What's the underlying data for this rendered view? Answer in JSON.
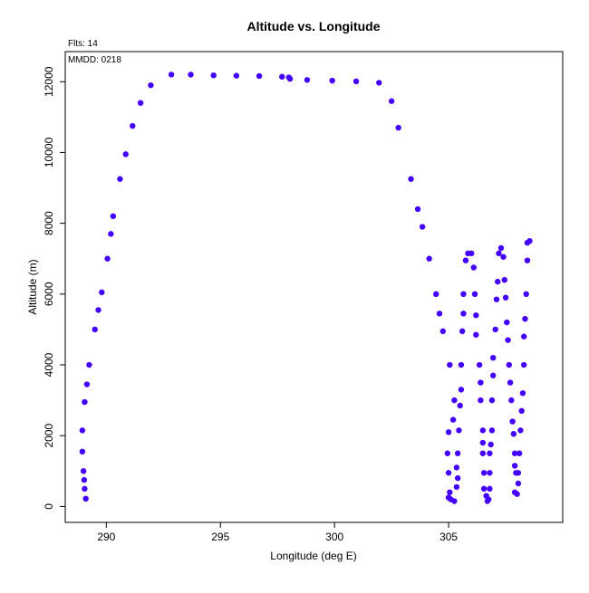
{
  "chart_data": {
    "type": "scatter",
    "title": "Altitude vs. Longitude",
    "xlabel": "Longitude (deg E)",
    "ylabel": "Altitude (m)",
    "annotations": [
      "Flts: 14",
      "MMDD: 0218"
    ],
    "xlim": [
      288.2,
      310.0
    ],
    "ylim": [
      -450,
      12850
    ],
    "x_ticks": [
      290,
      295,
      300,
      305
    ],
    "y_ticks": [
      0,
      2000,
      4000,
      6000,
      8000,
      10000,
      12000
    ],
    "grid": false,
    "legend": "none",
    "marker_color": "#4400ff",
    "series": [
      {
        "points": [
          [
            289.1,
            220
          ],
          [
            289.05,
            500
          ],
          [
            289.03,
            750
          ],
          [
            289.0,
            1000
          ],
          [
            288.95,
            1550
          ],
          [
            288.95,
            2150
          ],
          [
            289.05,
            2950
          ],
          [
            289.15,
            3450
          ],
          [
            289.25,
            4000
          ],
          [
            289.5,
            5000
          ],
          [
            289.65,
            5550
          ],
          [
            289.8,
            6050
          ],
          [
            290.05,
            7000
          ],
          [
            290.2,
            7700
          ],
          [
            290.3,
            8200
          ],
          [
            290.6,
            9250
          ],
          [
            290.85,
            9950
          ],
          [
            291.15,
            10750
          ],
          [
            291.5,
            11400
          ],
          [
            291.95,
            11900
          ],
          [
            292.85,
            12200
          ],
          [
            293.7,
            12200
          ],
          [
            294.7,
            12180
          ],
          [
            295.7,
            12170
          ],
          [
            296.7,
            12160
          ],
          [
            297.7,
            12140
          ],
          [
            298.0,
            12120
          ],
          [
            298.05,
            12080
          ],
          [
            298.8,
            12050
          ],
          [
            299.9,
            12030
          ],
          [
            300.95,
            12010
          ],
          [
            301.95,
            11970
          ],
          [
            302.5,
            11450
          ],
          [
            302.8,
            10700
          ],
          [
            303.35,
            9250
          ],
          [
            303.65,
            8400
          ],
          [
            303.85,
            7900
          ],
          [
            304.15,
            7000
          ],
          [
            304.45,
            6000
          ],
          [
            304.6,
            5450
          ],
          [
            304.75,
            4950
          ],
          [
            304.95,
            1500
          ],
          [
            305.0,
            950
          ],
          [
            305.05,
            4000
          ],
          [
            305.0,
            2100
          ],
          [
            305.05,
            400
          ],
          [
            305.0,
            250
          ],
          [
            305.1,
            200
          ],
          [
            305.2,
            2450
          ],
          [
            305.25,
            3000
          ],
          [
            305.25,
            150
          ],
          [
            305.35,
            550
          ],
          [
            305.4,
            800
          ],
          [
            305.35,
            1100
          ],
          [
            305.4,
            1500
          ],
          [
            305.45,
            2150
          ],
          [
            305.5,
            2850
          ],
          [
            305.55,
            3300
          ],
          [
            305.55,
            4000
          ],
          [
            305.6,
            4950
          ],
          [
            305.65,
            5450
          ],
          [
            305.65,
            6000
          ],
          [
            305.75,
            6950
          ],
          [
            305.85,
            7150
          ],
          [
            306.0,
            7150
          ],
          [
            306.1,
            6750
          ],
          [
            306.15,
            6000
          ],
          [
            306.2,
            5400
          ],
          [
            306.2,
            4850
          ],
          [
            306.35,
            4000
          ],
          [
            306.4,
            3500
          ],
          [
            306.4,
            3000
          ],
          [
            306.5,
            2150
          ],
          [
            306.5,
            1800
          ],
          [
            306.5,
            1500
          ],
          [
            306.55,
            950
          ],
          [
            306.55,
            500
          ],
          [
            306.65,
            300
          ],
          [
            306.75,
            200
          ],
          [
            306.7,
            150
          ],
          [
            306.8,
            500
          ],
          [
            306.8,
            950
          ],
          [
            306.8,
            1500
          ],
          [
            306.85,
            1750
          ],
          [
            306.9,
            2150
          ],
          [
            306.9,
            3000
          ],
          [
            306.95,
            3700
          ],
          [
            306.95,
            4200
          ],
          [
            307.05,
            5000
          ],
          [
            307.1,
            5850
          ],
          [
            307.15,
            6350
          ],
          [
            307.2,
            7150
          ],
          [
            307.3,
            7300
          ],
          [
            307.4,
            7050
          ],
          [
            307.45,
            6400
          ],
          [
            307.5,
            5900
          ],
          [
            307.55,
            5200
          ],
          [
            307.6,
            4700
          ],
          [
            307.65,
            4000
          ],
          [
            307.7,
            3500
          ],
          [
            307.75,
            3000
          ],
          [
            307.8,
            2400
          ],
          [
            307.85,
            2050
          ],
          [
            307.9,
            1500
          ],
          [
            307.9,
            1150
          ],
          [
            307.95,
            950
          ],
          [
            307.9,
            400
          ],
          [
            308.0,
            350
          ],
          [
            308.05,
            650
          ],
          [
            308.05,
            950
          ],
          [
            308.1,
            1500
          ],
          [
            308.15,
            2150
          ],
          [
            308.2,
            2700
          ],
          [
            308.25,
            3200
          ],
          [
            308.3,
            4000
          ],
          [
            308.3,
            4800
          ],
          [
            308.35,
            5300
          ],
          [
            308.4,
            6000
          ],
          [
            308.45,
            6950
          ],
          [
            308.45,
            7450
          ],
          [
            308.55,
            7500
          ]
        ]
      }
    ]
  }
}
